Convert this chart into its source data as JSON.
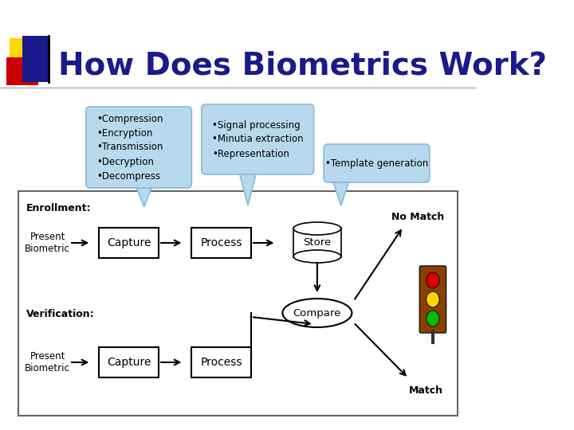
{
  "title": "How Does Biometrics Work?",
  "title_color": "#1a1a8c",
  "title_fontsize": 28,
  "bg_color": "#ffffff",
  "logo_colors": {
    "yellow": "#FFD700",
    "red": "#CC0000",
    "blue_dark": "#1a1a8c",
    "blue_line": "#8888cc"
  },
  "bubble1_text": "•Compression\n•Encryption\n•Transmission\n•Decryption\n•Decompress",
  "bubble2_text": "•Signal processing\n•Minutia extraction\n•Representation",
  "bubble3_text": "•Template generation",
  "bubble_bg": "#b8d8ed",
  "bubble_edge": "#8ab8d8",
  "enrollment_label": "Enrollment:",
  "verification_label": "Verification:",
  "present_biometric": "Present\nBiometric",
  "capture_label": "Capture",
  "process_label": "Process",
  "store_label": "Store",
  "compare_label": "Compare",
  "no_match_label": "No Match",
  "match_label": "Match",
  "traffic_body_color": "#8B4000",
  "traffic_red": "#dd0000",
  "traffic_yellow": "#FFD700",
  "traffic_green": "#00bb00"
}
